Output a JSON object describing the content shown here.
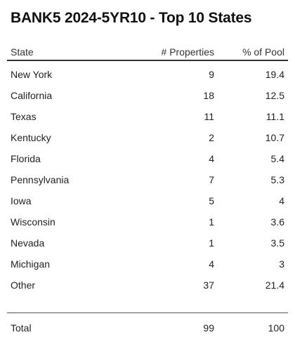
{
  "title": "BANK5 2024-5YR10 - Top 10 States",
  "table": {
    "headers": {
      "state": "State",
      "properties": "# Properties",
      "pool": "% of Pool"
    },
    "rows": [
      {
        "state": "New York",
        "properties": "9",
        "pool": "19.4"
      },
      {
        "state": "California",
        "properties": "18",
        "pool": "12.5"
      },
      {
        "state": "Texas",
        "properties": "11",
        "pool": "11.1"
      },
      {
        "state": "Kentucky",
        "properties": "2",
        "pool": "10.7"
      },
      {
        "state": "Florida",
        "properties": "4",
        "pool": "5.4"
      },
      {
        "state": "Pennsylvania",
        "properties": "7",
        "pool": "5.3"
      },
      {
        "state": "Iowa",
        "properties": "5",
        "pool": "4"
      },
      {
        "state": "Wisconsin",
        "properties": "1",
        "pool": "3.6"
      },
      {
        "state": "Nevada",
        "properties": "1",
        "pool": "3.5"
      },
      {
        "state": "Michigan",
        "properties": "4",
        "pool": "3"
      },
      {
        "state": "Other",
        "properties": "37",
        "pool": "21.4"
      }
    ],
    "total": {
      "state": "Total",
      "properties": "99",
      "pool": "100"
    }
  }
}
